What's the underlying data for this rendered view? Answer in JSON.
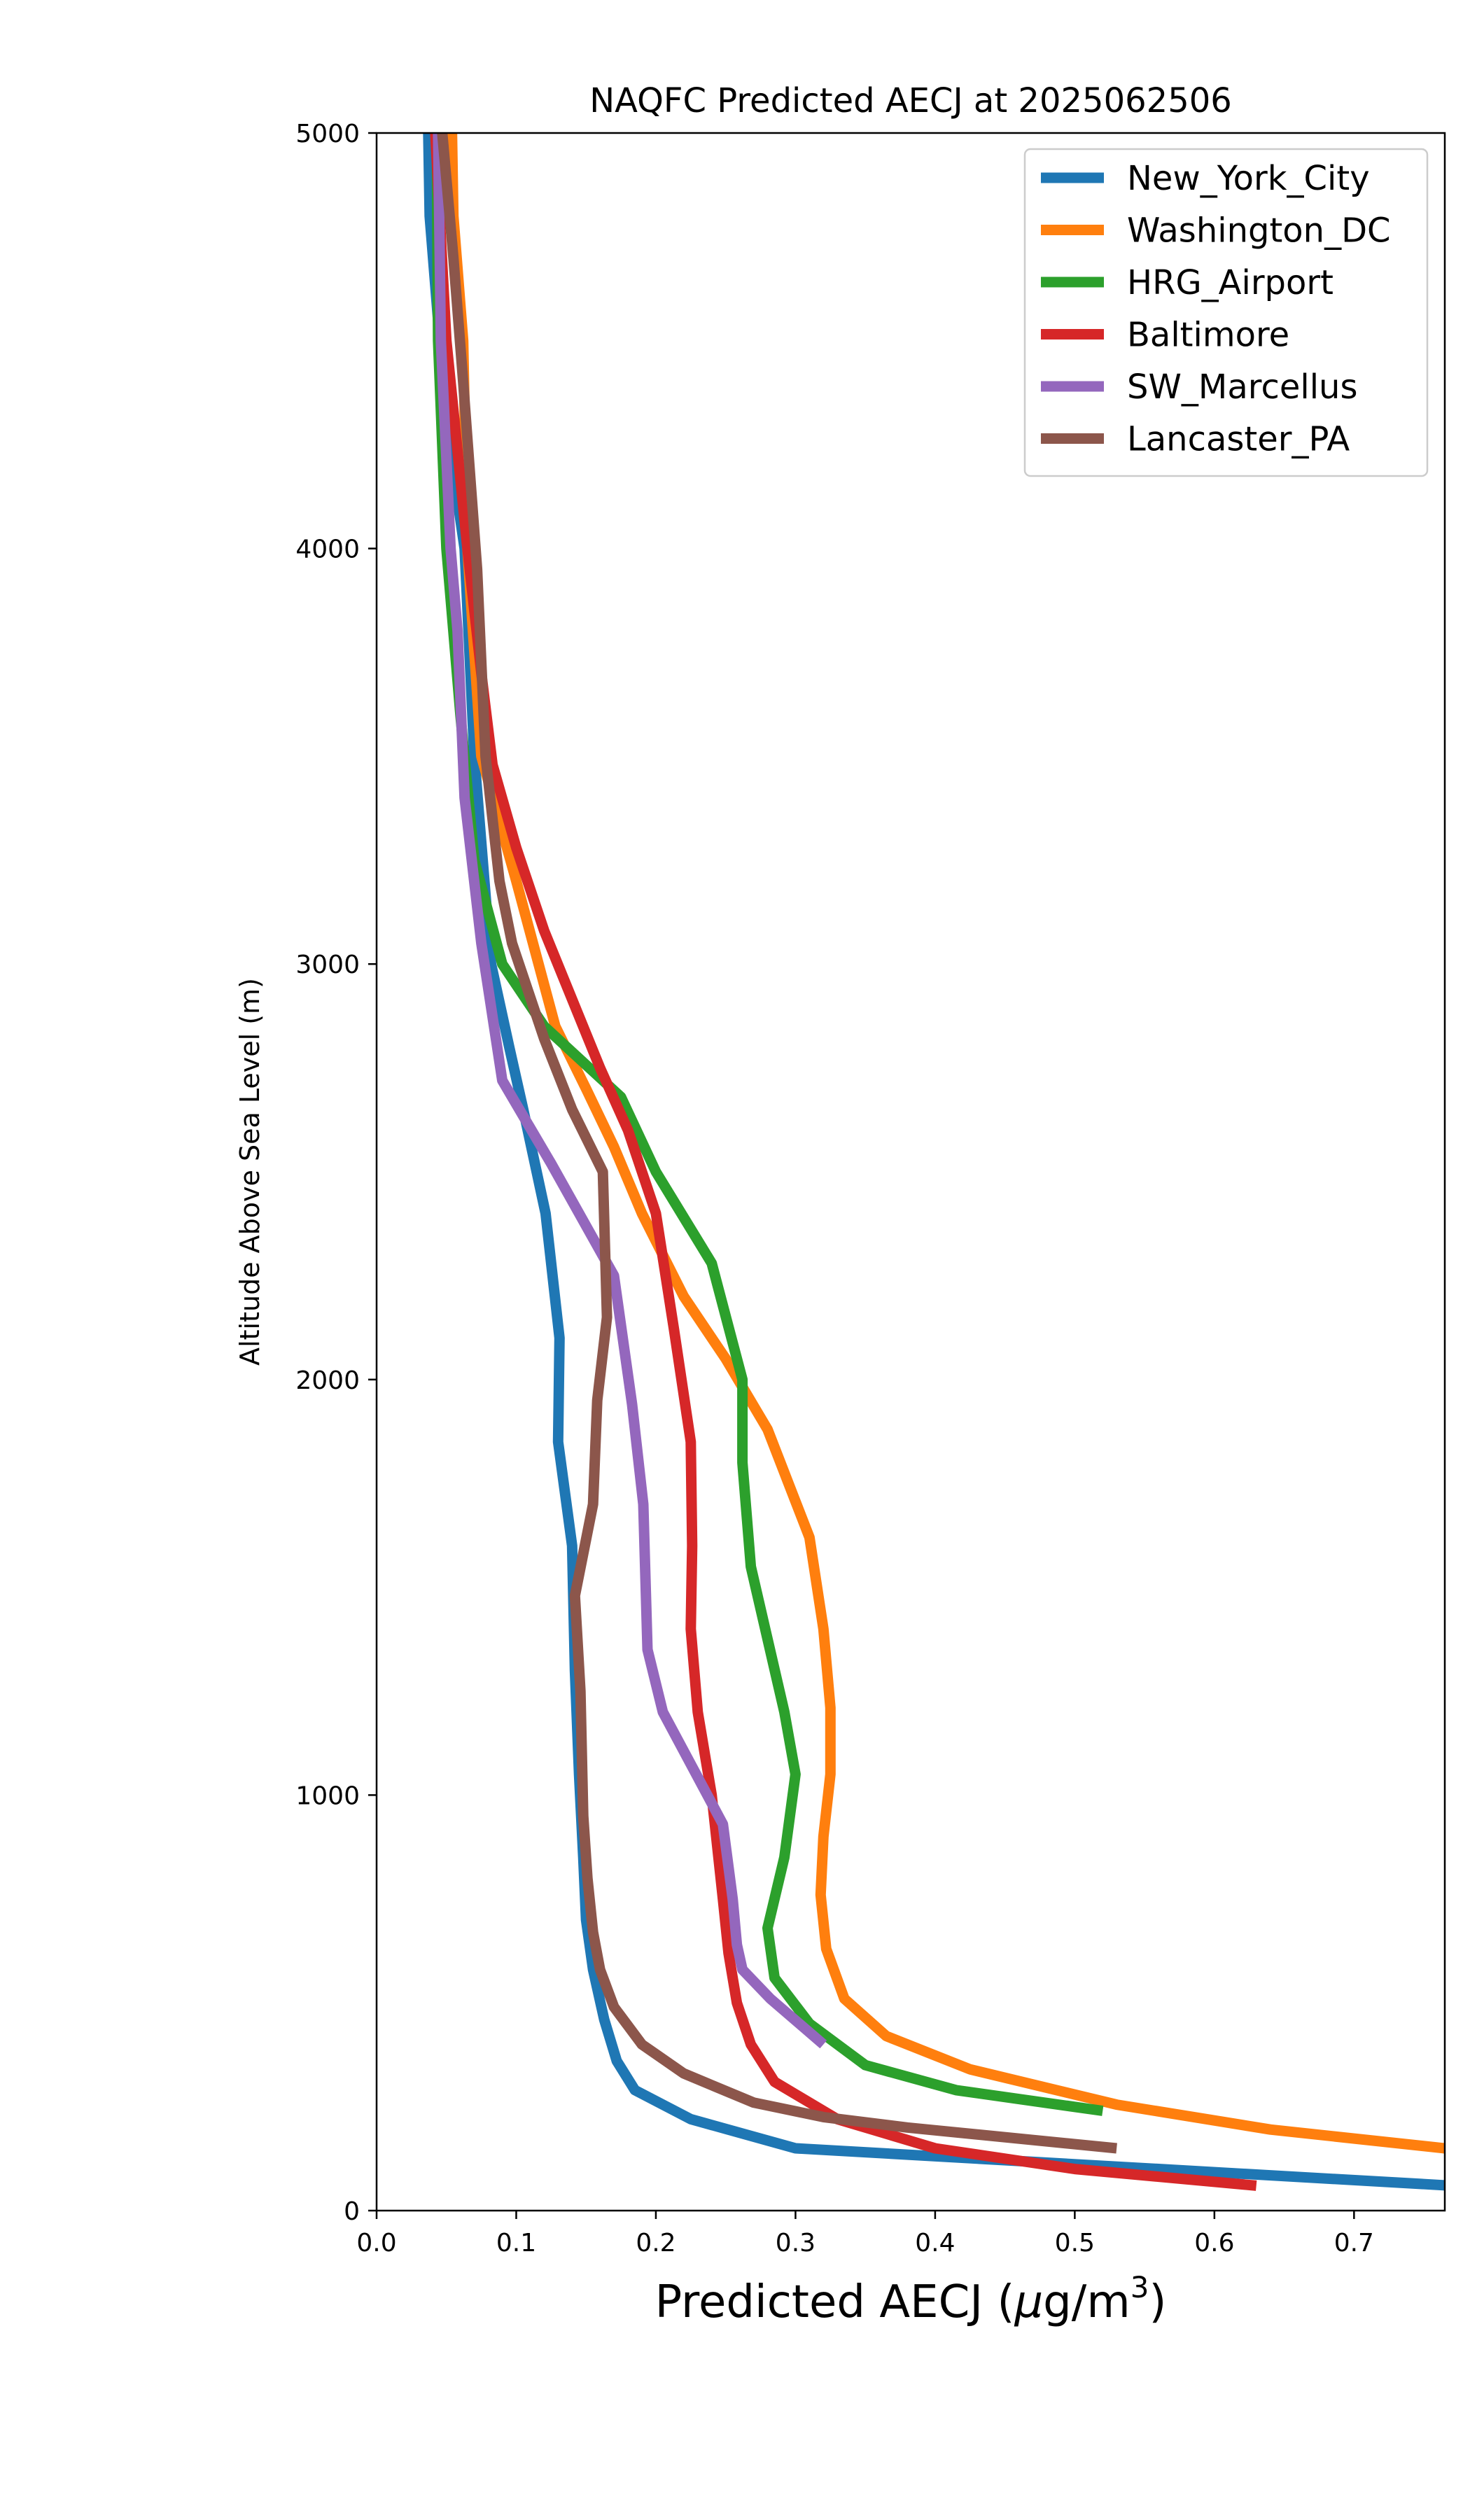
{
  "chart_data": {
    "type": "line",
    "title": "NAQFC Predicted AECJ at 2025062506",
    "xlabel_main": "Predicted AECJ (",
    "xlabel_mu": "μ",
    "xlabel_unit": "g/m",
    "xlabel_sup": "3",
    "xlabel_close": ")",
    "ylabel": "Altitude Above Sea Level (m)",
    "xlim": [
      0.0,
      0.765
    ],
    "ylim": [
      0,
      5000
    ],
    "xticks": [
      0.0,
      0.1,
      0.2,
      0.3,
      0.4,
      0.5,
      0.6,
      0.7
    ],
    "xtick_labels": [
      "0.0",
      "0.1",
      "0.2",
      "0.3",
      "0.4",
      "0.5",
      "0.6",
      "0.7"
    ],
    "yticks": [
      0,
      1000,
      2000,
      3000,
      4000,
      5000
    ],
    "ytick_labels": [
      "0",
      "1000",
      "2000",
      "3000",
      "4000",
      "5000"
    ],
    "grid": false,
    "legend_position": "top-right",
    "series": [
      {
        "name": "New_York_City",
        "color": "#1f77b4",
        "points": [
          [
            0.77,
            60
          ],
          [
            0.3,
            150
          ],
          [
            0.225,
            220
          ],
          [
            0.185,
            290
          ],
          [
            0.172,
            360
          ],
          [
            0.163,
            460
          ],
          [
            0.155,
            580
          ],
          [
            0.15,
            700
          ],
          [
            0.148,
            850
          ],
          [
            0.145,
            1050
          ],
          [
            0.142,
            1300
          ],
          [
            0.14,
            1600
          ],
          [
            0.13,
            1850
          ],
          [
            0.131,
            2100
          ],
          [
            0.121,
            2400
          ],
          [
            0.105,
            2650
          ],
          [
            0.095,
            2800
          ],
          [
            0.082,
            3000
          ],
          [
            0.07,
            3500
          ],
          [
            0.063,
            4000
          ],
          [
            0.05,
            4300
          ],
          [
            0.038,
            4800
          ],
          [
            0.037,
            5000
          ]
        ]
      },
      {
        "name": "Washington_DC",
        "color": "#ff7f0e",
        "points": [
          [
            0.765,
            150
          ],
          [
            0.64,
            195
          ],
          [
            0.53,
            255
          ],
          [
            0.425,
            340
          ],
          [
            0.365,
            420
          ],
          [
            0.335,
            510
          ],
          [
            0.322,
            630
          ],
          [
            0.318,
            760
          ],
          [
            0.32,
            900
          ],
          [
            0.325,
            1050
          ],
          [
            0.325,
            1210
          ],
          [
            0.32,
            1400
          ],
          [
            0.31,
            1620
          ],
          [
            0.28,
            1880
          ],
          [
            0.25,
            2050
          ],
          [
            0.22,
            2200
          ],
          [
            0.19,
            2400
          ],
          [
            0.17,
            2560
          ],
          [
            0.15,
            2700
          ],
          [
            0.128,
            2850
          ],
          [
            0.1,
            3200
          ],
          [
            0.075,
            3500
          ],
          [
            0.065,
            4000
          ],
          [
            0.062,
            4500
          ],
          [
            0.055,
            4800
          ],
          [
            0.054,
            5000
          ]
        ]
      },
      {
        "name": "HRG_Airport",
        "color": "#2ca02c",
        "points": [
          [
            0.52,
            240
          ],
          [
            0.415,
            290
          ],
          [
            0.35,
            350
          ],
          [
            0.31,
            450
          ],
          [
            0.285,
            560
          ],
          [
            0.28,
            680
          ],
          [
            0.292,
            850
          ],
          [
            0.3,
            1050
          ],
          [
            0.292,
            1200
          ],
          [
            0.268,
            1550
          ],
          [
            0.262,
            1800
          ],
          [
            0.262,
            2000
          ],
          [
            0.24,
            2280
          ],
          [
            0.2,
            2500
          ],
          [
            0.175,
            2680
          ],
          [
            0.12,
            2850
          ],
          [
            0.09,
            3000
          ],
          [
            0.07,
            3250
          ],
          [
            0.06,
            3600
          ],
          [
            0.05,
            4000
          ],
          [
            0.044,
            4500
          ],
          [
            0.043,
            5000
          ]
        ]
      },
      {
        "name": "Baltimore",
        "color": "#d62728",
        "points": [
          [
            0.63,
            60
          ],
          [
            0.5,
            100
          ],
          [
            0.4,
            150
          ],
          [
            0.33,
            220
          ],
          [
            0.285,
            310
          ],
          [
            0.268,
            400
          ],
          [
            0.258,
            500
          ],
          [
            0.252,
            620
          ],
          [
            0.248,
            750
          ],
          [
            0.24,
            1000
          ],
          [
            0.23,
            1200
          ],
          [
            0.225,
            1400
          ],
          [
            0.226,
            1600
          ],
          [
            0.225,
            1850
          ],
          [
            0.213,
            2120
          ],
          [
            0.2,
            2400
          ],
          [
            0.18,
            2600
          ],
          [
            0.16,
            2750
          ],
          [
            0.12,
            3080
          ],
          [
            0.1,
            3280
          ],
          [
            0.083,
            3480
          ],
          [
            0.075,
            3700
          ],
          [
            0.065,
            4000
          ],
          [
            0.05,
            4500
          ],
          [
            0.042,
            5000
          ]
        ]
      },
      {
        "name": "SW_Marcellus",
        "color": "#9467bd",
        "points": [
          [
            0.32,
            400
          ],
          [
            0.282,
            510
          ],
          [
            0.262,
            580
          ],
          [
            0.258,
            640
          ],
          [
            0.255,
            750
          ],
          [
            0.248,
            930
          ],
          [
            0.205,
            1200
          ],
          [
            0.194,
            1350
          ],
          [
            0.191,
            1700
          ],
          [
            0.183,
            1940
          ],
          [
            0.17,
            2250
          ],
          [
            0.125,
            2520
          ],
          [
            0.09,
            2720
          ],
          [
            0.075,
            3050
          ],
          [
            0.063,
            3400
          ],
          [
            0.058,
            3800
          ],
          [
            0.053,
            4000
          ],
          [
            0.046,
            4500
          ],
          [
            0.044,
            5000
          ]
        ]
      },
      {
        "name": "Lancaster_PA",
        "color": "#8c564b",
        "points": [
          [
            0.53,
            150
          ],
          [
            0.38,
            200
          ],
          [
            0.32,
            225
          ],
          [
            0.27,
            260
          ],
          [
            0.22,
            330
          ],
          [
            0.19,
            400
          ],
          [
            0.17,
            490
          ],
          [
            0.16,
            580
          ],
          [
            0.155,
            670
          ],
          [
            0.151,
            800
          ],
          [
            0.148,
            950
          ],
          [
            0.146,
            1250
          ],
          [
            0.142,
            1480
          ],
          [
            0.155,
            1700
          ],
          [
            0.158,
            1950
          ],
          [
            0.165,
            2150
          ],
          [
            0.162,
            2500
          ],
          [
            0.14,
            2650
          ],
          [
            0.12,
            2820
          ],
          [
            0.097,
            3050
          ],
          [
            0.088,
            3200
          ],
          [
            0.078,
            3500
          ],
          [
            0.072,
            3950
          ],
          [
            0.062,
            4400
          ],
          [
            0.055,
            4700
          ],
          [
            0.047,
            5000
          ]
        ]
      }
    ]
  }
}
